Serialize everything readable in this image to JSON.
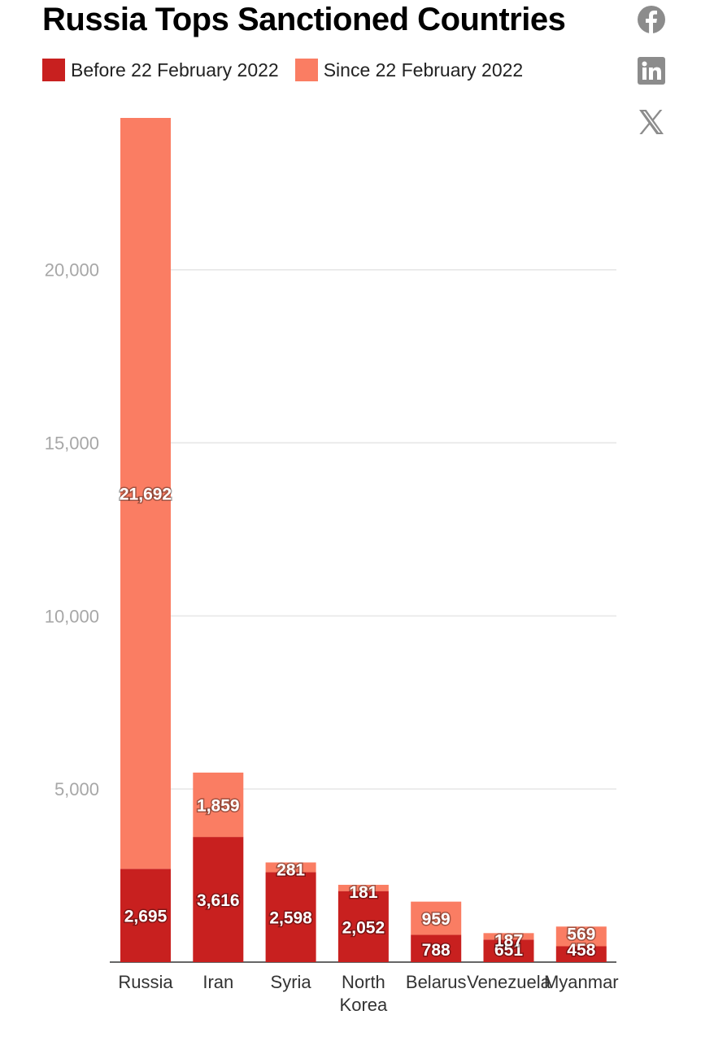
{
  "share": {
    "facebook_icon": "facebook-icon",
    "linkedin_icon": "linkedin-icon",
    "x_icon": "x-icon",
    "icon_color": "#8c8c8c"
  },
  "chart_data": {
    "type": "bar",
    "stacked": true,
    "title": "Russia Tops Sanctioned Countries",
    "xlabel": "",
    "ylabel": "",
    "categories": [
      "Russia",
      "Iran",
      "Syria",
      "North Korea",
      "Belarus",
      "Venezuela",
      "Myanmar"
    ],
    "series": [
      {
        "name": "Before 22 February 2022",
        "color": "#c8201f",
        "values": [
          2695,
          3616,
          2598,
          2052,
          788,
          651,
          458
        ],
        "labels": [
          "2,695",
          "3,616",
          "2,598",
          "2,052",
          "788",
          "651",
          "458"
        ]
      },
      {
        "name": "Since 22 February 2022",
        "color": "#fa7d63",
        "values": [
          21692,
          1859,
          281,
          181,
          959,
          187,
          569
        ],
        "labels": [
          "21,692",
          "1,859",
          "281",
          "181",
          "959",
          "187",
          "569"
        ]
      }
    ],
    "ylim": [
      0,
      24387
    ],
    "yticks": [
      5000,
      10000,
      15000,
      20000
    ],
    "ytick_labels": [
      "5,000",
      "10,000",
      "15,000",
      "20,000"
    ],
    "grid": true,
    "legend": "top-left"
  }
}
